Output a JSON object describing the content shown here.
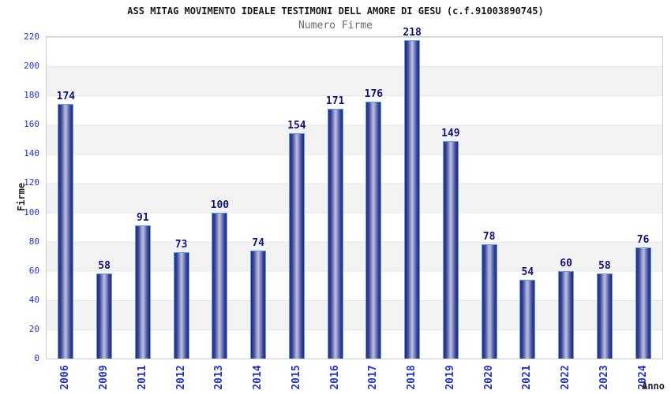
{
  "header": {
    "title": "ASS MITAG MOVIMENTO IDEALE TESTIMONI DELL AMORE DI GESU (c.f.91003890745)",
    "subtitle": "Numero Firme"
  },
  "chart_data": {
    "type": "bar",
    "title": "ASS MITAG MOVIMENTO IDEALE TESTIMONI DELL AMORE DI GESU (c.f.91003890745)",
    "subtitle": "Numero Firme",
    "categories": [
      "2006",
      "2009",
      "2011",
      "2012",
      "2013",
      "2014",
      "2015",
      "2016",
      "2017",
      "2018",
      "2019",
      "2020",
      "2021",
      "2022",
      "2023",
      "2024"
    ],
    "values": [
      174,
      58,
      91,
      73,
      100,
      74,
      154,
      171,
      176,
      218,
      149,
      78,
      54,
      60,
      58,
      76
    ],
    "xlabel": "Anno",
    "ylabel": "Firme",
    "ylim": [
      0,
      220
    ],
    "ytick_step": 20,
    "yticks": [
      0,
      20,
      40,
      60,
      80,
      100,
      120,
      140,
      160,
      180,
      200,
      220
    ],
    "grid": "horizontal gridlines every 20 with alternating white/gray bands",
    "legend": "none",
    "bar_value_labels": true,
    "colors": {
      "bar_edge_dark": "#232a7e",
      "bar_mid": "#3a4494",
      "bar_center_light": "#b2b9e0",
      "bar_outline": "#58a0e8",
      "value_label": "#12127a",
      "tick_label": "#2233cc",
      "band_gray": "#f3f3f3",
      "grid_line": "#e4e4e4",
      "plot_border": "#cccccc",
      "title_color": "#1a1a1a",
      "subtitle_color": "#6a6a6a",
      "axis_title_color": "#222222"
    }
  }
}
